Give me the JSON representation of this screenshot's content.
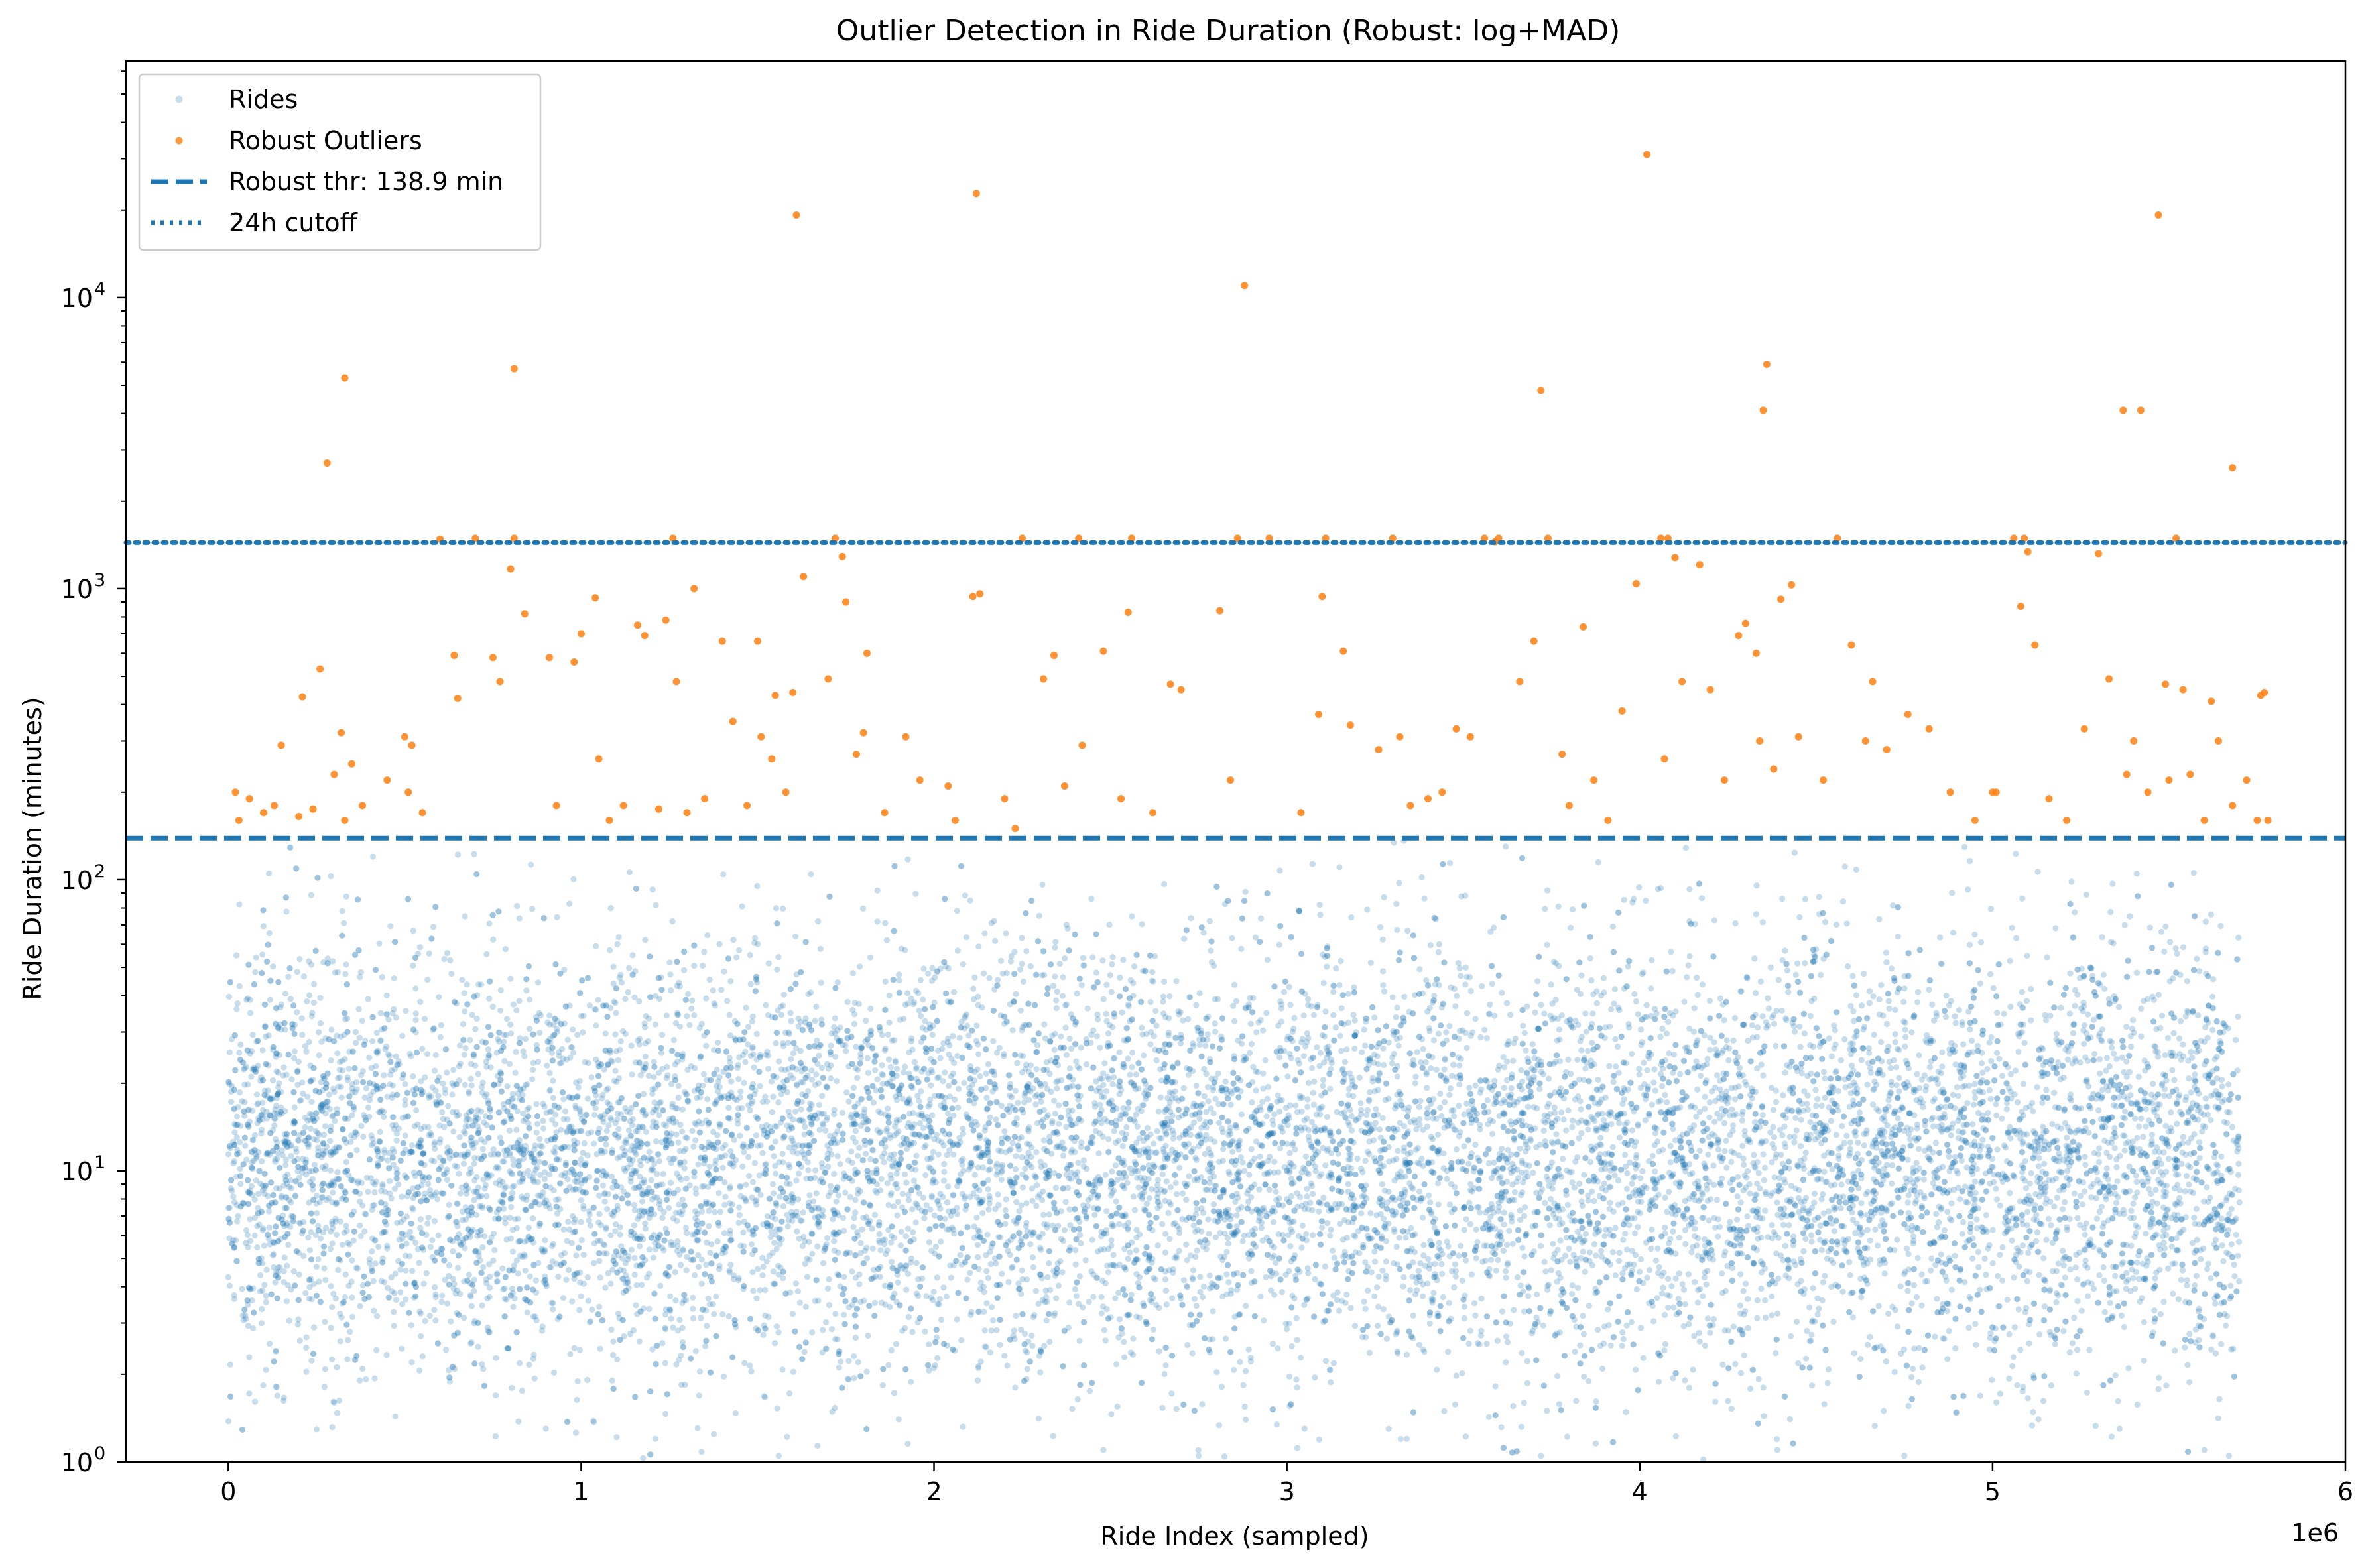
{
  "chart_data": {
    "type": "scatter",
    "title": "Outlier Detection in Ride Duration (Robust: log+MAD)",
    "xlabel": "Ride Index (sampled)",
    "ylabel": "Ride Duration (minutes)",
    "x_offset_label": "1e6",
    "x_scale": "linear",
    "y_scale": "log",
    "xlim": [
      -290000,
      6000000
    ],
    "ylim": [
      1,
      65000
    ],
    "x_ticks": [
      0,
      1,
      2,
      3,
      4,
      5,
      6
    ],
    "y_tick_labels": [
      {
        "value": 1,
        "label": "10",
        "exp": "0"
      },
      {
        "value": 10,
        "label": "10",
        "exp": "1"
      },
      {
        "value": 100,
        "label": "10",
        "exp": "2"
      },
      {
        "value": 1000,
        "label": "10",
        "exp": "3"
      },
      {
        "value": 10000,
        "label": "10",
        "exp": "4"
      }
    ],
    "grid": false,
    "legend_position": "top-left",
    "series": [
      {
        "name": "Rides",
        "kind": "scatter",
        "color": "#1f77b4",
        "alpha": 0.25,
        "x_range": [
          0,
          5700000
        ],
        "y_max": 138.9,
        "y_median": 11,
        "y_min": 1,
        "points": [
          [
            50000,
            3.1
          ],
          [
            120000,
            45
          ],
          [
            300000,
            1.6
          ],
          [
            410000,
            120
          ],
          [
            520000,
            2.2
          ],
          [
            900000,
            1.3
          ],
          [
            1210000,
            1.2
          ],
          [
            1560000,
            1.05
          ],
          [
            1900000,
            1.4
          ],
          [
            2230000,
            1.8
          ],
          [
            2480000,
            1.1
          ],
          [
            2750000,
            1.05
          ],
          [
            3050000,
            1.3
          ],
          [
            3340000,
            1.2
          ],
          [
            3720000,
            1.05
          ],
          [
            4180000,
            1.02
          ],
          [
            4390000,
            1.1
          ],
          [
            4750000,
            1.05
          ],
          [
            5130000,
            1.4
          ],
          [
            5360000,
            1.3
          ],
          [
            5600000,
            1.1
          ],
          [
            5670000,
            1.05
          ]
        ]
      },
      {
        "name": "Robust Outliers",
        "kind": "scatter",
        "color": "#ff7f0e",
        "points": [
          [
            20000,
            200
          ],
          [
            30000,
            160
          ],
          [
            60000,
            190
          ],
          [
            100000,
            170
          ],
          [
            130000,
            180
          ],
          [
            150000,
            290
          ],
          [
            200000,
            165
          ],
          [
            210000,
            425
          ],
          [
            240000,
            175
          ],
          [
            260000,
            530
          ],
          [
            280000,
            2700
          ],
          [
            300000,
            230
          ],
          [
            320000,
            320
          ],
          [
            330000,
            160
          ],
          [
            330000,
            5300
          ],
          [
            350000,
            250
          ],
          [
            380000,
            180
          ],
          [
            450000,
            220
          ],
          [
            500000,
            310
          ],
          [
            510000,
            200
          ],
          [
            520000,
            290
          ],
          [
            550000,
            170
          ],
          [
            600000,
            1480
          ],
          [
            640000,
            590
          ],
          [
            650000,
            420
          ],
          [
            700000,
            1490
          ],
          [
            750000,
            580
          ],
          [
            770000,
            480
          ],
          [
            800000,
            1170
          ],
          [
            810000,
            1490
          ],
          [
            810000,
            5700
          ],
          [
            840000,
            820
          ],
          [
            910000,
            580
          ],
          [
            930000,
            180
          ],
          [
            980000,
            560
          ],
          [
            1000000,
            700
          ],
          [
            1040000,
            930
          ],
          [
            1050000,
            260
          ],
          [
            1080000,
            160
          ],
          [
            1120000,
            180
          ],
          [
            1160000,
            750
          ],
          [
            1180000,
            690
          ],
          [
            1220000,
            175
          ],
          [
            1240000,
            780
          ],
          [
            1260000,
            1490
          ],
          [
            1270000,
            480
          ],
          [
            1300000,
            170
          ],
          [
            1320000,
            1000
          ],
          [
            1350000,
            190
          ],
          [
            1400000,
            660
          ],
          [
            1430000,
            350
          ],
          [
            1470000,
            180
          ],
          [
            1500000,
            660
          ],
          [
            1510000,
            310
          ],
          [
            1540000,
            260
          ],
          [
            1550000,
            430
          ],
          [
            1580000,
            200
          ],
          [
            1600000,
            440
          ],
          [
            1610000,
            19200
          ],
          [
            1630000,
            1100
          ],
          [
            1700000,
            490
          ],
          [
            1720000,
            1490
          ],
          [
            1740000,
            1290
          ],
          [
            1750000,
            900
          ],
          [
            1780000,
            270
          ],
          [
            1800000,
            320
          ],
          [
            1810000,
            600
          ],
          [
            1860000,
            170
          ],
          [
            1920000,
            310
          ],
          [
            1960000,
            220
          ],
          [
            2040000,
            210
          ],
          [
            2060000,
            160
          ],
          [
            2110000,
            940
          ],
          [
            2120000,
            22800
          ],
          [
            2130000,
            960
          ],
          [
            2200000,
            190
          ],
          [
            2230000,
            150
          ],
          [
            2250000,
            1490
          ],
          [
            2310000,
            490
          ],
          [
            2340000,
            590
          ],
          [
            2370000,
            210
          ],
          [
            2410000,
            1490
          ],
          [
            2420000,
            290
          ],
          [
            2480000,
            610
          ],
          [
            2530000,
            190
          ],
          [
            2550000,
            830
          ],
          [
            2560000,
            1490
          ],
          [
            2620000,
            170
          ],
          [
            2670000,
            470
          ],
          [
            2700000,
            450
          ],
          [
            2810000,
            840
          ],
          [
            2840000,
            220
          ],
          [
            2860000,
            1490
          ],
          [
            2880000,
            11000
          ],
          [
            2950000,
            1490
          ],
          [
            3040000,
            170
          ],
          [
            3090000,
            370
          ],
          [
            3100000,
            940
          ],
          [
            3110000,
            1490
          ],
          [
            3160000,
            610
          ],
          [
            3180000,
            340
          ],
          [
            3260000,
            280
          ],
          [
            3300000,
            1490
          ],
          [
            3320000,
            310
          ],
          [
            3350000,
            180
          ],
          [
            3400000,
            190
          ],
          [
            3440000,
            200
          ],
          [
            3480000,
            330
          ],
          [
            3520000,
            310
          ],
          [
            3560000,
            1490
          ],
          [
            3590000,
            1450
          ],
          [
            3600000,
            1490
          ],
          [
            3660000,
            480
          ],
          [
            3700000,
            660
          ],
          [
            3720000,
            4800
          ],
          [
            3740000,
            1490
          ],
          [
            3780000,
            270
          ],
          [
            3800000,
            180
          ],
          [
            3840000,
            740
          ],
          [
            3870000,
            220
          ],
          [
            3910000,
            160
          ],
          [
            3950000,
            380
          ],
          [
            3990000,
            1040
          ],
          [
            4020000,
            31000
          ],
          [
            4060000,
            1490
          ],
          [
            4070000,
            260
          ],
          [
            4080000,
            1490
          ],
          [
            4100000,
            1280
          ],
          [
            4120000,
            480
          ],
          [
            4170000,
            1210
          ],
          [
            4200000,
            450
          ],
          [
            4240000,
            220
          ],
          [
            4280000,
            690
          ],
          [
            4300000,
            760
          ],
          [
            4330000,
            600
          ],
          [
            4340000,
            300
          ],
          [
            4350000,
            4100
          ],
          [
            4360000,
            5900
          ],
          [
            4380000,
            240
          ],
          [
            4400000,
            920
          ],
          [
            4430000,
            1030
          ],
          [
            4450000,
            310
          ],
          [
            4520000,
            220
          ],
          [
            4560000,
            1490
          ],
          [
            4600000,
            640
          ],
          [
            4640000,
            300
          ],
          [
            4660000,
            480
          ],
          [
            4700000,
            280
          ],
          [
            4760000,
            370
          ],
          [
            4820000,
            330
          ],
          [
            4880000,
            200
          ],
          [
            4950000,
            160
          ],
          [
            5000000,
            200
          ],
          [
            5010000,
            200
          ],
          [
            5060000,
            1490
          ],
          [
            5080000,
            870
          ],
          [
            5090000,
            1490
          ],
          [
            5100000,
            1340
          ],
          [
            5120000,
            640
          ],
          [
            5160000,
            190
          ],
          [
            5210000,
            160
          ],
          [
            5260000,
            330
          ],
          [
            5300000,
            1320
          ],
          [
            5330000,
            490
          ],
          [
            5370000,
            4100
          ],
          [
            5380000,
            230
          ],
          [
            5400000,
            300
          ],
          [
            5420000,
            4100
          ],
          [
            5440000,
            200
          ],
          [
            5470000,
            19200
          ],
          [
            5490000,
            470
          ],
          [
            5500000,
            220
          ],
          [
            5520000,
            1490
          ],
          [
            5540000,
            450
          ],
          [
            5560000,
            230
          ],
          [
            5600000,
            160
          ],
          [
            5620000,
            410
          ],
          [
            5640000,
            300
          ],
          [
            5680000,
            2600
          ],
          [
            5680000,
            180
          ],
          [
            5720000,
            220
          ],
          [
            5750000,
            160
          ],
          [
            5760000,
            430
          ],
          [
            5770000,
            440
          ],
          [
            5780000,
            160
          ]
        ]
      }
    ],
    "reference_lines": [
      {
        "name": "Robust thr: 138.9 min",
        "orientation": "horizontal",
        "y": 138.9,
        "style": "dashed",
        "color": "#1f77b4"
      },
      {
        "name": "24h cutoff",
        "orientation": "horizontal",
        "y": 1440,
        "style": "dotted",
        "color": "#1f77b4"
      }
    ],
    "legend": [
      {
        "label": "Rides",
        "marker": "point",
        "color": "#1f77b4",
        "alpha": 0.25
      },
      {
        "label": "Robust Outliers",
        "marker": "point",
        "color": "#ff7f0e",
        "alpha": 0.8
      },
      {
        "label": "Robust thr: 138.9 min",
        "marker": "dashed-line",
        "color": "#1f77b4"
      },
      {
        "label": "24h cutoff",
        "marker": "dotted-line",
        "color": "#1f77b4"
      }
    ]
  }
}
